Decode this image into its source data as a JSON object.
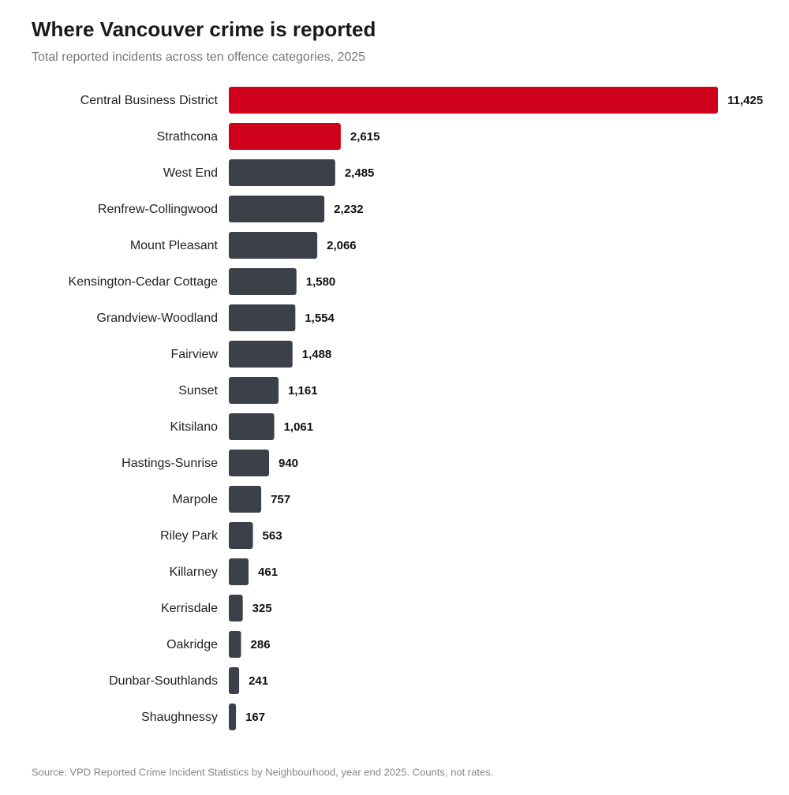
{
  "chart_data": {
    "type": "bar",
    "orientation": "horizontal",
    "title": "Where Vancouver crime is reported",
    "subtitle": "Total reported incidents across ten offence categories, 2025",
    "source": "Source: VPD Reported Crime Incident Statistics by Neighbourhood, year end 2025. Counts, not rates.",
    "categories": [
      "Central Business District",
      "Strathcona",
      "West End",
      "Renfrew-Collingwood",
      "Mount Pleasant",
      "Kensington-Cedar Cottage",
      "Grandview-Woodland",
      "Fairview",
      "Sunset",
      "Kitsilano",
      "Hastings-Sunrise",
      "Marpole",
      "Riley Park",
      "Killarney",
      "Kerrisdale",
      "Oakridge",
      "Dunbar-Southlands",
      "Shaughnessy"
    ],
    "values": [
      11425,
      2615,
      2485,
      2232,
      2066,
      1580,
      1554,
      1488,
      1161,
      1061,
      940,
      757,
      563,
      461,
      325,
      286,
      241,
      167
    ],
    "value_labels": [
      "11,425",
      "2,615",
      "2,485",
      "2,232",
      "2,066",
      "1,580",
      "1,554",
      "1,488",
      "1,161",
      "1,061",
      "940",
      "757",
      "563",
      "461",
      "325",
      "286",
      "241",
      "167"
    ],
    "colors": [
      "#d0021b",
      "#d0021b",
      "#3c4048",
      "#3c4048",
      "#3c4048",
      "#3c4048",
      "#3c4048",
      "#3c4048",
      "#3c4048",
      "#3c4048",
      "#3c4048",
      "#3c4048",
      "#3c4048",
      "#3c4048",
      "#3c4048",
      "#3c4048",
      "#3c4048",
      "#3c4048"
    ]
  }
}
